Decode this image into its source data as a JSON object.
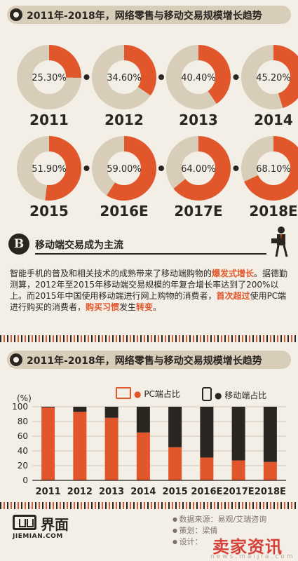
{
  "header": {
    "title": "2011年-2018年，网络零售与移动交易规模增长趋势"
  },
  "colors": {
    "accent": "#e2562b",
    "dark": "#2b2522",
    "ring": "#d8cdb8",
    "bg": "#f3efe6"
  },
  "chart_data": [
    {
      "type": "pie",
      "title": "2011年-2018年，网络零售与移动交易规模增长趋势",
      "categories": [
        "2011",
        "2012",
        "2013",
        "2014",
        "2015",
        "2016E",
        "2017E",
        "2018E"
      ],
      "value_labels": [
        "25.30%",
        "34.60%",
        "40.40%",
        "45.20%",
        "51.90%",
        "59.00%",
        "64.00%",
        "68.10%"
      ],
      "values": [
        25.3,
        34.6,
        40.4,
        45.2,
        51.9,
        59.0,
        64.0,
        68.1
      ]
    },
    {
      "type": "bar",
      "title": "2011年-2018年，网络零售与移动交易规模增长趋势",
      "ylabel": "(%)",
      "ylim": [
        0,
        100
      ],
      "yticks": [
        "0",
        "20",
        "40",
        "60",
        "80",
        "100"
      ],
      "categories": [
        "2011",
        "2012",
        "2013",
        "2014",
        "2015",
        "2016E",
        "2017E",
        "2018E"
      ],
      "series": [
        {
          "name": "PC端占比",
          "values": [
            99,
            93,
            85,
            65,
            45,
            31,
            27,
            25
          ]
        },
        {
          "name": "移动端占比",
          "values": [
            1,
            7,
            15,
            35,
            55,
            69,
            73,
            75
          ]
        }
      ],
      "stacked": true,
      "legend": "top-right"
    }
  ],
  "section": {
    "badge": "B",
    "title": "移动端交易成为主流",
    "text_1": "智能手机的普及和相关技术的成熟带来了移动端购物的",
    "hl_1": "爆发式增长",
    "text_2": "。据德勤测算，2012年至2015年移动端交易规模的年复合增长率达到了200%以上。而2015年中国使用移动端进行网上购物的消费者，",
    "hl_2": "首次超过",
    "text_3": "使用PC端进行购买的消费者，",
    "hl_3": "购买习惯",
    "text_4": "发生",
    "hl_4": "转变",
    "text_5": "。"
  },
  "legend": {
    "bullet": "●",
    "pc_label": "PC端占比",
    "mobile_label": "移动端占比",
    "pc_icon": "monitor-icon",
    "mobile_icon": "phone-icon"
  },
  "footer": {
    "logo_cn": "界面",
    "logo_en": "JIEMIAN.COM",
    "credit_source": "数据来源：易观/艾瑞咨询",
    "credit_plan": "策划：梁倩",
    "credit_design": "设计：",
    "watermark": "卖家资讯",
    "watermark_url": "news.maijia.com"
  }
}
